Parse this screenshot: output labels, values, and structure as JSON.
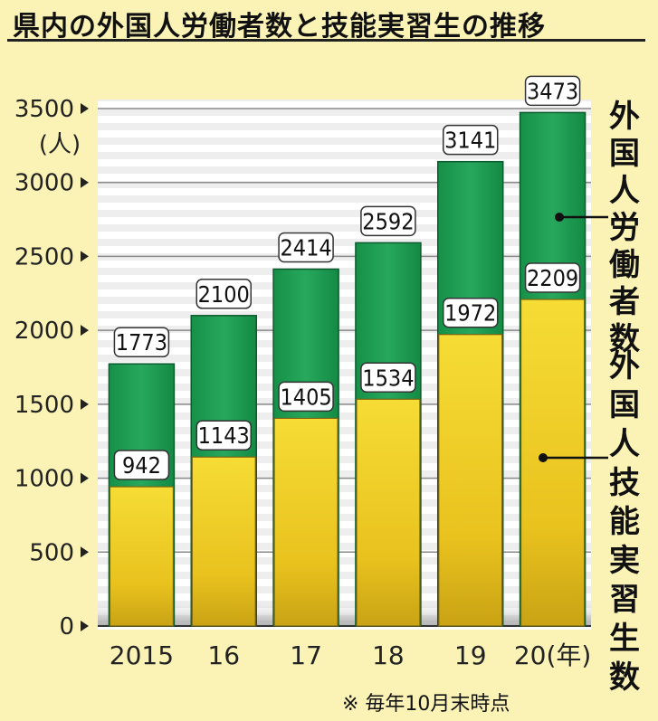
{
  "title": "県内の外国人労働者数と技能実習生の推移",
  "note": "※ 毎年10月末時点",
  "chart_data": {
    "type": "bar",
    "title": "県内の外国人労働者数と技能実習生の推移",
    "ylabel": "(人)",
    "ylim": [
      0,
      3500
    ],
    "yticks": [
      0,
      500,
      1000,
      1500,
      2000,
      2500,
      3000,
      3500
    ],
    "ytick_labels": [
      "0",
      "500",
      "1000",
      "1500",
      "2000",
      "2500",
      "3000",
      "3500"
    ],
    "categories": [
      "2015",
      "16",
      "17",
      "18",
      "19",
      "20(年)"
    ],
    "grid": true,
    "series": [
      {
        "name": "外国人労働者数",
        "values": [
          1773,
          2100,
          2414,
          2592,
          3141,
          3473
        ],
        "color": "#1e9a55"
      },
      {
        "name": "外国人技能実習生数",
        "values": [
          942,
          1143,
          1405,
          1534,
          1972,
          2209
        ],
        "color": "#f2cf25"
      }
    ]
  }
}
